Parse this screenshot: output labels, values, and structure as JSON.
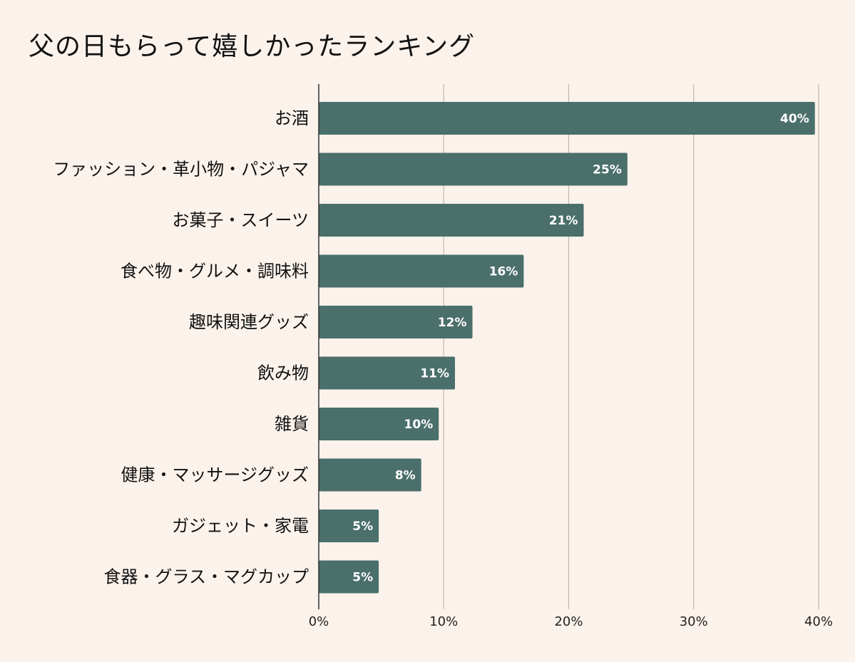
{
  "title": "父の日もらって嬉しかったランキング",
  "chart_data": {
    "type": "bar",
    "orientation": "horizontal",
    "title": "父の日もらって嬉しかったランキング",
    "categories": [
      "お酒",
      "ファッション・革小物・パジャマ",
      "お菓子・スイーツ",
      "食べ物・グルメ・調味料",
      "趣味関連グッズ",
      "飲み物",
      "雑貨",
      "健康・マッサージグッズ",
      "ガジェット・家電",
      "食器・グラス・マグカップ"
    ],
    "values": [
      39.7,
      24.7,
      21.2,
      16.4,
      12.3,
      10.9,
      9.6,
      8.2,
      4.8,
      4.8
    ],
    "data_labels": [
      "40%",
      "25%",
      "21%",
      "16%",
      "12%",
      "11%",
      "10%",
      "8%",
      "5%",
      "5%"
    ],
    "xlim": [
      0,
      40
    ],
    "xticks": [
      0,
      10,
      20,
      30,
      40
    ],
    "xtick_labels": [
      "0%",
      "10%",
      "20%",
      "30%",
      "40%"
    ],
    "grid": true,
    "legend": "none",
    "bar_color": "#4b6f6b"
  }
}
